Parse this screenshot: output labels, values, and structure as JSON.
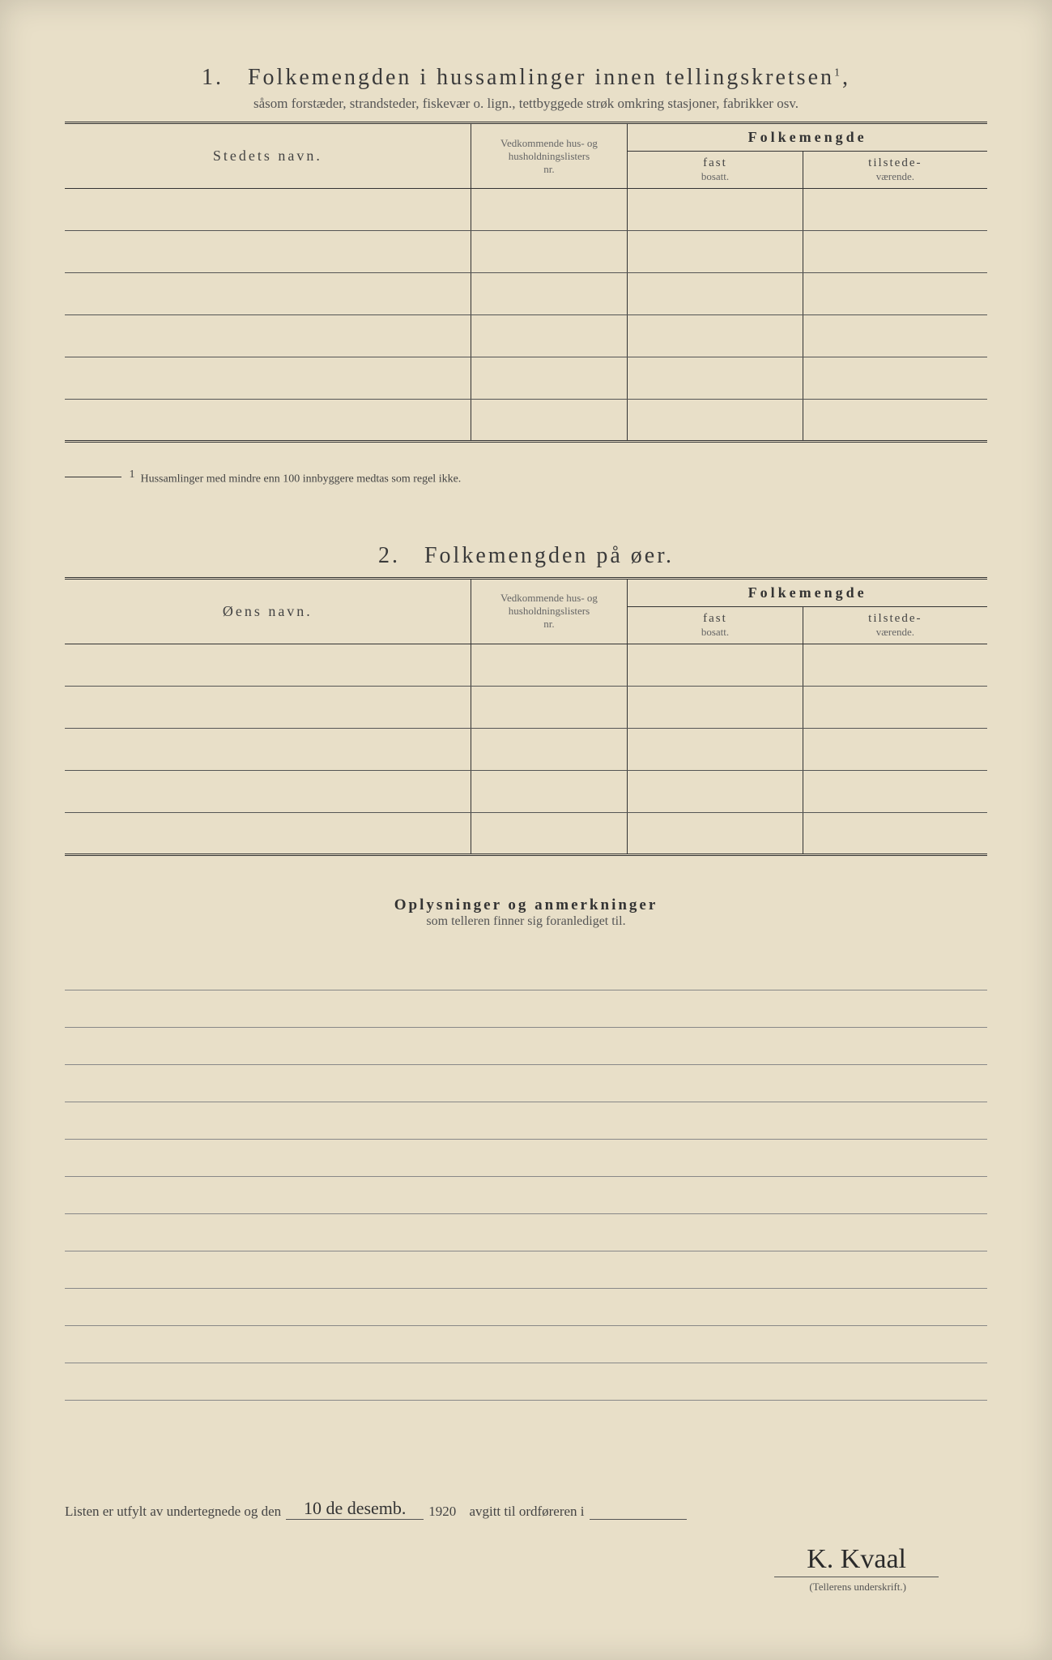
{
  "colors": {
    "paper": "#e8dfc8",
    "ink": "#333333",
    "faint": "#666666"
  },
  "section1": {
    "number": "1.",
    "title": "Folkemengden i hussamlinger innen tellingskretsen",
    "title_sup": "1",
    "subtitle": "såsom forstæder, strandsteder, fiskevær o. lign., tettbyggede strøk omkring stasjoner, fabrikker osv.",
    "col_stedet": "Stedets navn.",
    "col_vedkommende_l1": "Vedkommende hus- og",
    "col_vedkommende_l2": "husholdningslisters",
    "col_vedkommende_l3": "nr.",
    "col_folkemengde": "Folkemengde",
    "col_fast_l1": "fast",
    "col_fast_l2": "bosatt.",
    "col_tilstede_l1": "tilstede-",
    "col_tilstede_l2": "værende.",
    "row_count": 6,
    "footnote_marker": "1",
    "footnote_text": "Hussamlinger med mindre enn 100 innbyggere medtas som regel ikke."
  },
  "section2": {
    "number": "2.",
    "title": "Folkemengden på øer.",
    "col_oen": "Øens navn.",
    "row_count": 5
  },
  "remarks": {
    "title": "Oplysninger og anmerkninger",
    "subtitle": "som telleren finner sig foranlediget til.",
    "line_count": 12
  },
  "signature": {
    "prefix": "Listen er utfylt av undertegnede og den",
    "date_handwritten": "10 de desemb.",
    "year": "1920",
    "mid": "avgitt til ordføreren i",
    "place_handwritten": "",
    "name": "K. Kvaal",
    "caption": "(Tellerens underskrift.)"
  }
}
